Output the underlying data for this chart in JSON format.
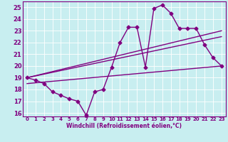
{
  "xlabel": "Windchill (Refroidissement éolien,°C)",
  "background_color": "#c8eef0",
  "line_color": "#800080",
  "grid_color": "#ffffff",
  "xlim": [
    -0.5,
    23.5
  ],
  "ylim": [
    15.7,
    25.5
  ],
  "yticks": [
    16,
    17,
    18,
    19,
    20,
    21,
    22,
    23,
    24,
    25
  ],
  "xticks": [
    0,
    1,
    2,
    3,
    4,
    5,
    6,
    7,
    8,
    9,
    10,
    11,
    12,
    13,
    14,
    15,
    16,
    17,
    18,
    19,
    20,
    21,
    22,
    23
  ],
  "series1_x": [
    0,
    1,
    2,
    3,
    4,
    5,
    6,
    7,
    8,
    9,
    10,
    11,
    12,
    13,
    14,
    15,
    16,
    17,
    18,
    19,
    20,
    21,
    22,
    23
  ],
  "series1_y": [
    19.0,
    18.8,
    18.5,
    17.8,
    17.5,
    17.2,
    17.0,
    15.8,
    17.8,
    18.0,
    19.9,
    22.0,
    23.3,
    23.3,
    19.9,
    24.9,
    25.2,
    24.5,
    23.2,
    23.2,
    23.2,
    21.8,
    20.7,
    20.0
  ],
  "series2_x": [
    0,
    23
  ],
  "series2_y": [
    19.0,
    23.0
  ],
  "series3_x": [
    0,
    23
  ],
  "series3_y": [
    19.0,
    22.5
  ],
  "series4_x": [
    0,
    23
  ],
  "series4_y": [
    18.5,
    20.0
  ],
  "marker": "D",
  "markersize": 2.5,
  "linewidth": 1.0
}
